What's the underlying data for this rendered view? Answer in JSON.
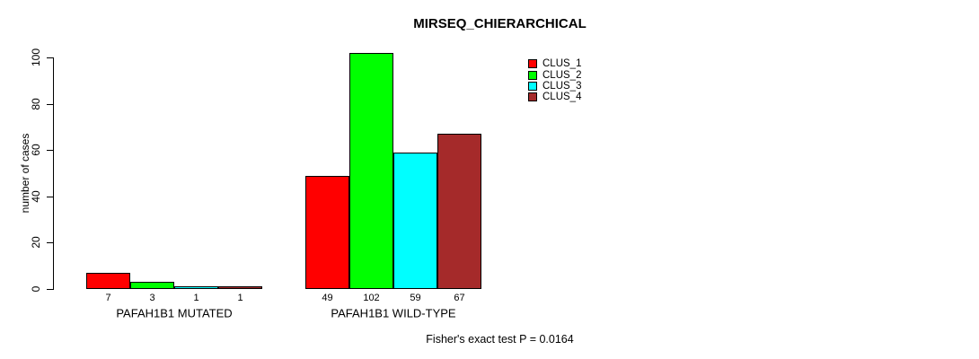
{
  "chart_data": {
    "type": "bar",
    "title": "MIRSEQ_CHIERARCHICAL",
    "xlabel": "",
    "ylabel": "number of cases",
    "ylim": [
      0,
      100
    ],
    "yticks": [
      0,
      20,
      40,
      60,
      80,
      100
    ],
    "grid": false,
    "legend_position": "top-right",
    "categories": [
      "PAFAH1B1 MUTATED",
      "PAFAH1B1 WILD-TYPE"
    ],
    "series": [
      {
        "name": "CLUS_1",
        "color": "#FF0000",
        "values": [
          7,
          49
        ]
      },
      {
        "name": "CLUS_2",
        "color": "#00FF00",
        "values": [
          3,
          102
        ]
      },
      {
        "name": "CLUS_3",
        "color": "#00FFFF",
        "values": [
          1,
          59
        ]
      },
      {
        "name": "CLUS_4",
        "color": "#A52A2A",
        "values": [
          1,
          67
        ]
      }
    ],
    "bar_value_labels": [
      [
        "7",
        "3",
        "1",
        "1"
      ],
      [
        "49",
        "102",
        "59",
        "67"
      ]
    ],
    "annotation": "Fisher's exact test P = 0.0164"
  }
}
